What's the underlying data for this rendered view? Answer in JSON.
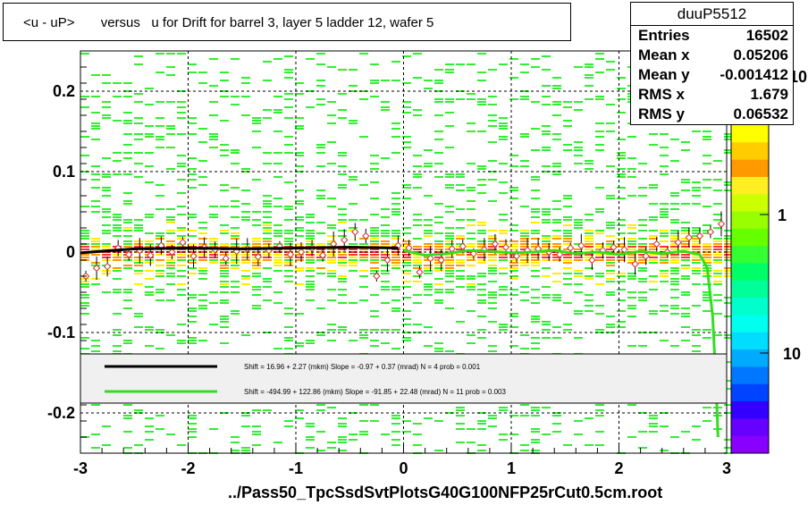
{
  "title": "<u - uP>       versus   u for Drift for barrel 3, layer 5 ladder 12, wafer 5",
  "stats": {
    "name": "duuP5512",
    "rows": [
      {
        "label": "Entries",
        "value": "16502"
      },
      {
        "label": "Mean x",
        "value": "0.05206"
      },
      {
        "label": "Mean y",
        "value": "-0.001412"
      },
      {
        "label": "RMS x",
        "value": "1.679"
      },
      {
        "label": "RMS y",
        "value": "0.06532"
      }
    ]
  },
  "xtitle": "../Pass50_TpcSsdSvtPlotsG40G100NFP25rCut0.5cm.root",
  "colors": {
    "black_fit": "#000000",
    "green_fit": "#33dd22",
    "cell_green": "#33ee33",
    "cell_yellow": "#ffee00",
    "cell_orange": "#ff9900",
    "cell_red": "#ff3333",
    "legend_bg": "#f0f0f0"
  },
  "chart_data": {
    "type": "heatmap",
    "title": "<u - uP>       versus   u for Drift for barrel 3, layer 5 ladder 12, wafer 5",
    "xlabel": "../Pass50_TpcSsdSvtPlotsG40G100NFP25rCut0.5cm.root",
    "ylabel": "",
    "xlim": [
      -3,
      3
    ],
    "ylim": [
      -0.25,
      0.25
    ],
    "x_ticks": [
      -3,
      -2,
      -1,
      0,
      1,
      2,
      3
    ],
    "y_ticks": [
      -0.2,
      -0.1,
      0,
      0.1,
      0.2
    ],
    "x_tick_labels": [
      "-3",
      "-2",
      "-1",
      "0",
      "1",
      "2",
      "3"
    ],
    "y_tick_labels": [
      "-0.2",
      "-0.1",
      "0",
      "0.1",
      "0.2"
    ],
    "grid": true,
    "log_z": true,
    "z_tick_labels": [
      "10",
      "1",
      "10"
    ],
    "profile_x": [
      -3.0,
      -2.9,
      -2.8,
      -2.7,
      -2.6,
      -2.5,
      -2.4,
      -2.3,
      -2.2,
      -2.1,
      -2.0,
      -1.9,
      -1.8,
      -1.7,
      -1.6,
      -1.5,
      -1.4,
      -1.3,
      -1.2,
      -1.1,
      -1.0,
      -0.9,
      -0.8,
      -0.7,
      -0.6,
      -0.5,
      -0.4,
      -0.3,
      -0.2,
      -0.1,
      0.0,
      0.1,
      0.2,
      0.3,
      0.4,
      0.5,
      0.6,
      0.7,
      0.8,
      0.9,
      1.0,
      1.1,
      1.2,
      1.3,
      1.4,
      1.5,
      1.6,
      1.7,
      1.8,
      1.9,
      2.0,
      2.1,
      2.2,
      2.3,
      2.4,
      2.5,
      2.6,
      2.7,
      2.8,
      2.9
    ],
    "profile_y": [
      -0.03,
      -0.02,
      -0.018,
      0.005,
      -0.003,
      0.002,
      -0.004,
      0.008,
      0.0,
      0.012,
      -0.005,
      0.006,
      0.003,
      -0.008,
      0.001,
      0.004,
      -0.006,
      0.002,
      0.007,
      -0.003,
      0.0,
      0.005,
      -0.004,
      0.01,
      0.015,
      0.025,
      0.02,
      -0.03,
      -0.01,
      0.008,
      0.005,
      -0.025,
      -0.008,
      -0.01,
      0.004,
      0.007,
      -0.002,
      0.003,
      0.01,
      0.006,
      -0.005,
      0.002,
      0.004,
      0.0,
      -0.003,
      0.005,
      0.008,
      -0.01,
      0.002,
      0.006,
      0.003,
      -0.015,
      -0.005,
      0.01,
      0.0,
      0.012,
      0.018,
      0.02,
      0.025,
      0.035
    ],
    "fits": [
      {
        "label": "Shift =    16.96 + 2.27 (mkm) Slope =    -0.97 + 0.37 (mrad)  N = 4 prob = 0.001",
        "color": "#000000",
        "x_range": [
          -3.0,
          -0.05
        ],
        "y_points": [
          [
            -3.0,
            -0.001
          ],
          [
            -2.5,
            0.004
          ],
          [
            -2.0,
            0.005
          ],
          [
            -1.5,
            0.004
          ],
          [
            -1.0,
            0.005
          ],
          [
            -0.5,
            0.006
          ],
          [
            -0.05,
            0.005
          ]
        ]
      },
      {
        "label": "Shift =  -494.99 + 122.86 (mkm) Slope =   -91.85 + 22.48 (mrad)  N = 11 prob = 0.003",
        "color": "#33dd22",
        "x_range": [
          0.0,
          2.93
        ],
        "y_points": [
          [
            0.0,
            0.002
          ],
          [
            0.2,
            -0.004
          ],
          [
            0.4,
            -0.002
          ],
          [
            0.6,
            0.002
          ],
          [
            0.8,
            0.001
          ],
          [
            1.0,
            -0.001
          ],
          [
            1.2,
            0.0
          ],
          [
            1.4,
            0.002
          ],
          [
            1.6,
            -0.002
          ],
          [
            1.8,
            0.0
          ],
          [
            2.0,
            -0.003
          ],
          [
            2.2,
            0.001
          ],
          [
            2.4,
            -0.002
          ],
          [
            2.6,
            0.001
          ],
          [
            2.75,
            -0.003
          ],
          [
            2.82,
            -0.02
          ],
          [
            2.87,
            -0.08
          ],
          [
            2.9,
            -0.16
          ],
          [
            2.92,
            -0.23
          ]
        ]
      }
    ]
  }
}
